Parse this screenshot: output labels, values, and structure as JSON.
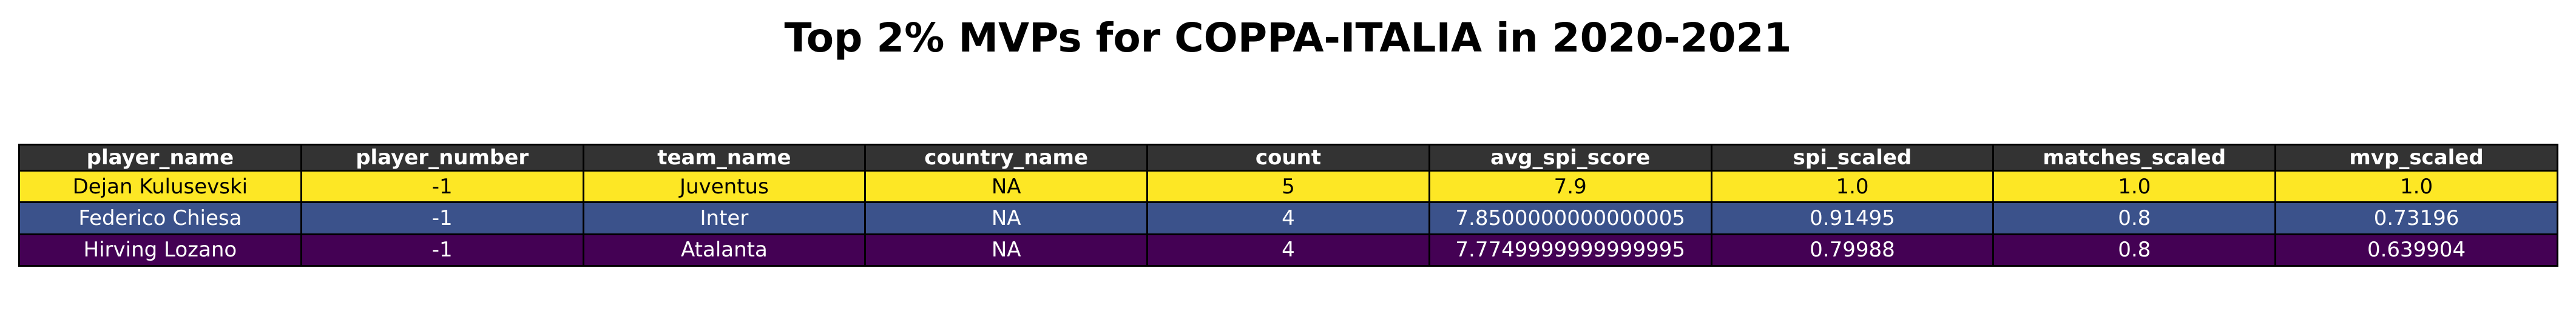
{
  "chart_data": {
    "type": "table",
    "title": "Top 2% MVPs for COPPA-ITALIA in 2020-2021",
    "columns": [
      "player_name",
      "player_number",
      "team_name",
      "country_name",
      "count",
      "avg_spi_score",
      "spi_scaled",
      "matches_scaled",
      "mvp_scaled"
    ],
    "rows": [
      [
        "Dejan Kulusevski",
        "-1",
        "Juventus",
        "NA",
        "5",
        "7.9",
        "1.0",
        "1.0",
        "1.0"
      ],
      [
        "Federico Chiesa",
        "-1",
        "Inter",
        "NA",
        "4",
        "7.8500000000000005",
        "0.91495",
        "0.8",
        "0.73196"
      ],
      [
        "Hirving Lozano",
        "-1",
        "Atalanta",
        "NA",
        "4",
        "7.7749999999999995",
        "0.79988",
        "0.8",
        "0.639904"
      ]
    ],
    "row_colors": [
      "#fde725",
      "#3b528b",
      "#440154"
    ],
    "row_text_colors": [
      "#000000",
      "#ffffff",
      "#ffffff"
    ],
    "header_color": "#333333",
    "header_text_color": "#ffffff"
  }
}
